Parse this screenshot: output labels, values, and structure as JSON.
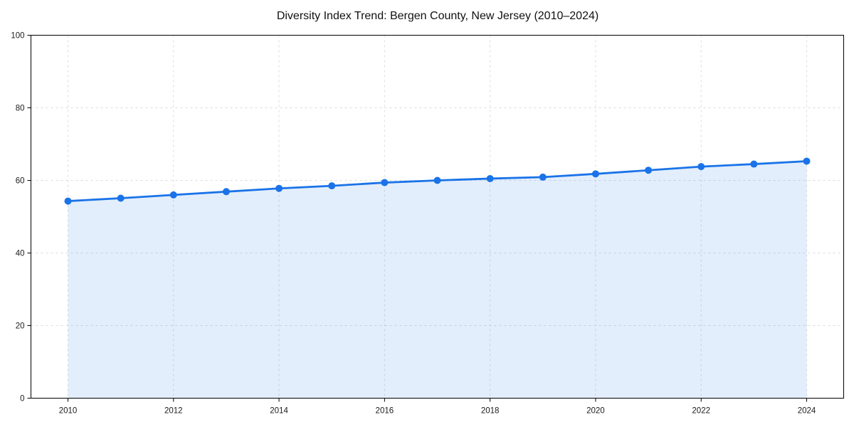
{
  "figure": {
    "background": "#ffffff"
  },
  "chart_data": {
    "type": "line",
    "title": "Diversity Index Trend: Bergen County, New Jersey (2010–2024)",
    "x": [
      2010,
      2011,
      2012,
      2013,
      2014,
      2015,
      2016,
      2017,
      2018,
      2019,
      2020,
      2021,
      2022,
      2023,
      2024
    ],
    "series": [
      {
        "name": "Diversity Index",
        "values": [
          54.3,
          55.1,
          56.0,
          56.9,
          57.8,
          58.5,
          59.4,
          60.0,
          60.5,
          60.9,
          61.8,
          62.8,
          63.8,
          64.5,
          65.3
        ]
      }
    ],
    "xlabel": "",
    "ylabel": "",
    "ylim": [
      0,
      100
    ],
    "yticks": [
      0,
      20,
      40,
      60,
      80,
      100
    ],
    "xticks": [
      2010,
      2012,
      2014,
      2016,
      2018,
      2020,
      2022,
      2024
    ],
    "grid": true,
    "grid_style": "dashed",
    "legend": false,
    "area_fill": true,
    "marker": "circle",
    "colors": {
      "line": "#1a73e8",
      "marker": "#1a73e8",
      "area": "#1a73e8",
      "area_opacity": 0.12,
      "grid": "#dcdcdc",
      "axis": "#000000",
      "text": "#1a1a1a"
    }
  }
}
